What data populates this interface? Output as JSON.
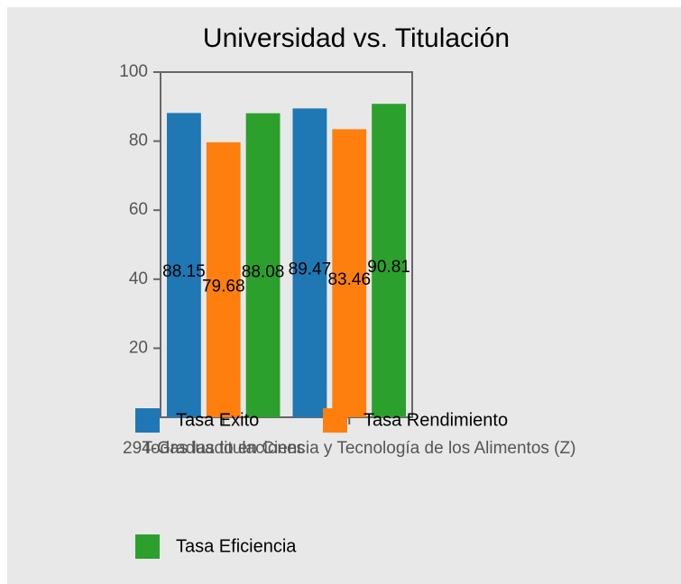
{
  "chart_data": {
    "type": "bar",
    "title": "Universidad vs. Titulación",
    "categories": [
      "Todas las titulaciones",
      "294-Graduado en Ciencia y Tecnología de los Alimentos (Z)"
    ],
    "series": [
      {
        "name": "Tasa Exito",
        "color": "#1f77b4",
        "values": [
          88.15,
          89.47
        ]
      },
      {
        "name": "Tasa Rendimiento",
        "color": "#ff7f0e",
        "values": [
          79.68,
          83.46
        ]
      },
      {
        "name": "Tasa Eficiencia",
        "color": "#2ca02c",
        "values": [
          88.08,
          90.81
        ]
      }
    ],
    "ylim": [
      0,
      100
    ],
    "yticks": [
      0,
      20,
      40,
      60,
      80,
      100
    ]
  }
}
